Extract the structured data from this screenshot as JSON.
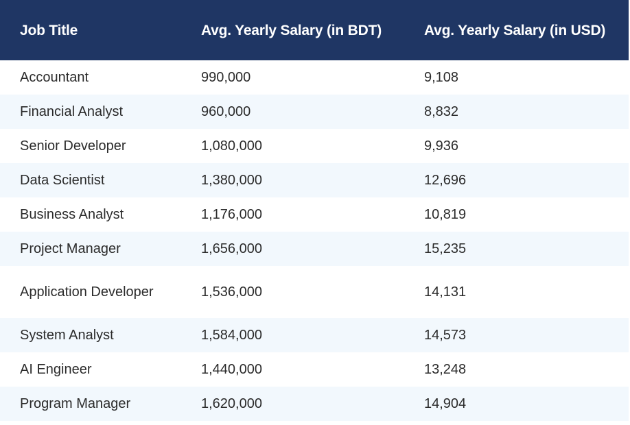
{
  "table": {
    "headers": {
      "job_title": "Job Title",
      "salary_bdt": "Avg. Yearly Salary (in BDT)",
      "salary_usd": "Avg. Yearly Salary (in USD)"
    },
    "rows": [
      {
        "job_title": "Accountant",
        "salary_bdt": "990,000",
        "salary_usd": "9,108"
      },
      {
        "job_title": "Financial Analyst",
        "salary_bdt": "960,000",
        "salary_usd": "8,832"
      },
      {
        "job_title": "Senior Developer",
        "salary_bdt": "1,080,000",
        "salary_usd": "9,936"
      },
      {
        "job_title": "Data Scientist",
        "salary_bdt": "1,380,000",
        "salary_usd": "12,696"
      },
      {
        "job_title": "Business Analyst",
        "salary_bdt": "1,176,000",
        "salary_usd": "10,819"
      },
      {
        "job_title": "Project Manager",
        "salary_bdt": "1,656,000",
        "salary_usd": "15,235"
      },
      {
        "job_title": "Application Developer",
        "salary_bdt": "1,536,000",
        "salary_usd": "14,131"
      },
      {
        "job_title": "System Analyst",
        "salary_bdt": "1,584,000",
        "salary_usd": "14,573"
      },
      {
        "job_title": "AI Engineer",
        "salary_bdt": "1,440,000",
        "salary_usd": "13,248"
      },
      {
        "job_title": "Program Manager",
        "salary_bdt": "1,620,000",
        "salary_usd": "14,904"
      }
    ]
  }
}
